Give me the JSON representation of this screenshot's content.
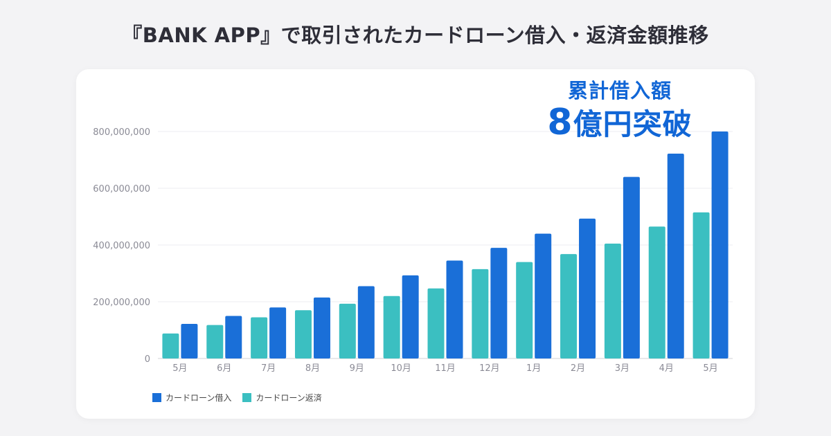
{
  "page": {
    "title": "『BANK APP』で取引されたカードローン借入・返済金額推移"
  },
  "callout": {
    "line1": "累計借入額",
    "line2_number": "8",
    "line2_text": "億円突破",
    "color": "#1166d6"
  },
  "chart_data": {
    "type": "bar",
    "title": "『BANK APP』で取引されたカードローン借入・返済金額推移",
    "xlabel": "",
    "ylabel": "",
    "categories": [
      "5月",
      "6月",
      "7月",
      "8月",
      "9月",
      "10月",
      "11月",
      "12月",
      "1月",
      "2月",
      "3月",
      "4月",
      "5月"
    ],
    "series": [
      {
        "name": "カードローン返済",
        "color": "#3bbfc1",
        "values": [
          88000000,
          118000000,
          145000000,
          170000000,
          193000000,
          220000000,
          247000000,
          315000000,
          340000000,
          368000000,
          405000000,
          465000000,
          515000000
        ]
      },
      {
        "name": "カードローン借入",
        "color": "#1a6fd8",
        "values": [
          122000000,
          150000000,
          180000000,
          215000000,
          255000000,
          293000000,
          345000000,
          390000000,
          440000000,
          493000000,
          640000000,
          722000000,
          800000000
        ]
      }
    ],
    "ylim": [
      0,
      800000000
    ],
    "yticks": [
      0,
      200000000,
      400000000,
      600000000,
      800000000
    ],
    "ytick_labels": [
      "0",
      "200,000,000",
      "400,000,000",
      "600,000,000",
      "800,000,000"
    ],
    "grid": true,
    "legend_position": "bottom-left",
    "legend_order": [
      "カードローン借入",
      "カードローン返済"
    ]
  }
}
